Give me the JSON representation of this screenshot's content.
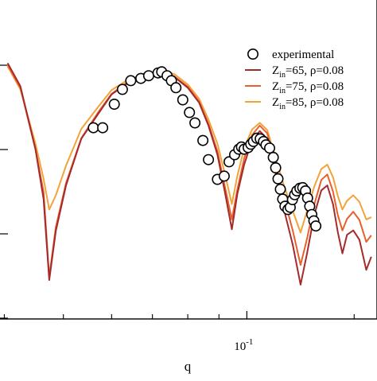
{
  "chart_data": {
    "type": "line",
    "xlabel": "q",
    "ylabel": "",
    "x_scale": "log",
    "x_tick_labels": [
      {
        "value": 0.1,
        "base": "10",
        "exp": "-1"
      }
    ],
    "legend_position": "top-right",
    "grid": false,
    "series": [
      {
        "name": "experimental",
        "name_parts": {
          "main": "experimental",
          "sub": "",
          "rest": ""
        },
        "kind": "scatter",
        "marker": "open-circle",
        "color": "#000000",
        "points": [
          [
            0.056,
            160.6
          ],
          [
            0.058,
            160.6
          ],
          [
            0.0606,
            131.0
          ],
          [
            0.0625,
            112.4
          ],
          [
            0.0645,
            101.4
          ],
          [
            0.067,
            98.6
          ],
          [
            0.069,
            95.2
          ],
          [
            0.0715,
            91.7
          ],
          [
            0.0725,
            90.3
          ],
          [
            0.074,
            95.2
          ],
          [
            0.0752,
            101.4
          ],
          [
            0.0765,
            110.3
          ],
          [
            0.0785,
            125.5
          ],
          [
            0.0805,
            141.4
          ],
          [
            0.0822,
            154.5
          ],
          [
            0.0847,
            176.6
          ],
          [
            0.0865,
            200.7
          ],
          [
            0.0895,
            225.5
          ],
          [
            0.0918,
            221.4
          ],
          [
            0.0935,
            203.4
          ],
          [
            0.0955,
            194.5
          ],
          [
            0.097,
            187.6
          ],
          [
            0.098,
            184.8
          ],
          [
            0.099,
            187.6
          ],
          [
            0.1005,
            185.5
          ],
          [
            0.1015,
            181.4
          ],
          [
            0.1025,
            177.9
          ],
          [
            0.1038,
            173.8
          ],
          [
            0.1052,
            174.5
          ],
          [
            0.1065,
            177.9
          ],
          [
            0.1075,
            182.1
          ],
          [
            0.109,
            186.2
          ],
          [
            0.1105,
            197.9
          ],
          [
            0.1115,
            211.0
          ],
          [
            0.1125,
            224.8
          ],
          [
            0.1135,
            237.9
          ],
          [
            0.1145,
            250.3
          ],
          [
            0.1155,
            259.3
          ],
          [
            0.1168,
            263.4
          ],
          [
            0.1178,
            260.7
          ],
          [
            0.1188,
            251.0
          ],
          [
            0.1198,
            244.8
          ],
          [
            0.1208,
            240.0
          ],
          [
            0.1222,
            236.6
          ],
          [
            0.1235,
            235.9
          ],
          [
            0.1248,
            240.0
          ],
          [
            0.1258,
            249.0
          ],
          [
            0.1268,
            259.3
          ],
          [
            0.1278,
            269.7
          ],
          [
            0.1288,
            277.6
          ],
          [
            0.1298,
            284.1
          ]
        ]
      },
      {
        "name": "Z_in=65, ρ=0.08",
        "name_parts": {
          "main": "Z",
          "sub": "in",
          "rest": "=65, ρ=0.08"
        },
        "kind": "line",
        "color": "#A52A2A",
        "points": [
          [
            0.0405,
            79.3
          ],
          [
            0.0425,
            108.3
          ],
          [
            0.045,
            187.6
          ],
          [
            0.0464,
            250.3
          ],
          [
            0.0474,
            352.1
          ],
          [
            0.0486,
            290.3
          ],
          [
            0.0505,
            233.1
          ],
          [
            0.0535,
            174.5
          ],
          [
            0.057,
            143.4
          ],
          [
            0.06,
            118.6
          ],
          [
            0.0635,
            105.5
          ],
          [
            0.068,
            94.5
          ],
          [
            0.0725,
            91.0
          ],
          [
            0.076,
            96.6
          ],
          [
            0.08,
            110.3
          ],
          [
            0.0835,
            129.0
          ],
          [
            0.0865,
            157.9
          ],
          [
            0.0895,
            194.5
          ],
          [
            0.092,
            240.7
          ],
          [
            0.0945,
            288.3
          ],
          [
            0.0965,
            243.4
          ],
          [
            0.099,
            206.9
          ],
          [
            0.102,
            176.6
          ],
          [
            0.105,
            164.8
          ],
          [
            0.108,
            174.5
          ],
          [
            0.111,
            211.0
          ],
          [
            0.115,
            262.8
          ],
          [
            0.119,
            308.3
          ],
          [
            0.1225,
            357.9
          ],
          [
            0.1255,
            319.3
          ],
          [
            0.129,
            270.3
          ],
          [
            0.1325,
            239.3
          ],
          [
            0.1355,
            233.1
          ],
          [
            0.1385,
            256.6
          ],
          [
            0.141,
            291.7
          ],
          [
            0.1435,
            318.6
          ],
          [
            0.146,
            295.2
          ],
          [
            0.1495,
            289.7
          ],
          [
            0.153,
            301.4
          ],
          [
            0.157,
            339.3
          ],
          [
            0.16,
            322.8
          ]
        ]
      },
      {
        "name": "Z_in=75, ρ=0.08",
        "name_parts": {
          "main": "Z",
          "sub": "in",
          "rest": "=75, ρ=0.08"
        },
        "kind": "line",
        "color": "#E8602C",
        "points": [
          [
            0.0405,
            81.4
          ],
          [
            0.0425,
            110.3
          ],
          [
            0.045,
            187.6
          ],
          [
            0.0464,
            241.4
          ],
          [
            0.0474,
            348.3
          ],
          [
            0.0486,
            285.5
          ],
          [
            0.0505,
            230.3
          ],
          [
            0.0535,
            173.8
          ],
          [
            0.057,
            141.4
          ],
          [
            0.06,
            117.9
          ],
          [
            0.0635,
            104.1
          ],
          [
            0.068,
            93.8
          ],
          [
            0.0725,
            90.3
          ],
          [
            0.076,
            95.9
          ],
          [
            0.08,
            109.0
          ],
          [
            0.0835,
            127.6
          ],
          [
            0.0865,
            155.9
          ],
          [
            0.0895,
            190.3
          ],
          [
            0.092,
            233.8
          ],
          [
            0.0945,
            275.9
          ],
          [
            0.0965,
            237.9
          ],
          [
            0.099,
            199.3
          ],
          [
            0.102,
            169.7
          ],
          [
            0.105,
            157.9
          ],
          [
            0.108,
            167.6
          ],
          [
            0.111,
            202.1
          ],
          [
            0.115,
            247.6
          ],
          [
            0.119,
            290.3
          ],
          [
            0.1225,
            333.1
          ],
          [
            0.1255,
            300.7
          ],
          [
            0.129,
            257.2
          ],
          [
            0.1325,
            226.2
          ],
          [
            0.1355,
            219.3
          ],
          [
            0.1385,
            240.7
          ],
          [
            0.141,
            270.3
          ],
          [
            0.1435,
            289.7
          ],
          [
            0.146,
            275.2
          ],
          [
            0.1495,
            266.2
          ],
          [
            0.153,
            276.6
          ],
          [
            0.157,
            304.1
          ],
          [
            0.16,
            295.9
          ]
        ]
      },
      {
        "name": "Z_in=85, ρ=0.08",
        "name_parts": {
          "main": "Z",
          "sub": "in",
          "rest": "=85, ρ=0.08"
        },
        "kind": "line",
        "color": "#F2A33A",
        "points": [
          [
            0.0405,
            83.4
          ],
          [
            0.0425,
            112.4
          ],
          [
            0.045,
            180.7
          ],
          [
            0.0464,
            224.8
          ],
          [
            0.0474,
            263.4
          ],
          [
            0.0486,
            245.5
          ],
          [
            0.0505,
            208.3
          ],
          [
            0.0535,
            162.1
          ],
          [
            0.057,
            134.5
          ],
          [
            0.06,
            113.1
          ],
          [
            0.0635,
            101.4
          ],
          [
            0.068,
            92.4
          ],
          [
            0.0725,
            89.0
          ],
          [
            0.076,
            93.1
          ],
          [
            0.08,
            106.2
          ],
          [
            0.0835,
            124.1
          ],
          [
            0.0865,
            150.3
          ],
          [
            0.0895,
            180.7
          ],
          [
            0.092,
            217.9
          ],
          [
            0.0945,
            256.6
          ],
          [
            0.0965,
            220.7
          ],
          [
            0.099,
            186.2
          ],
          [
            0.102,
            162.8
          ],
          [
            0.105,
            154.5
          ],
          [
            0.108,
            163.4
          ],
          [
            0.111,
            193.8
          ],
          [
            0.115,
            233.1
          ],
          [
            0.119,
            265.5
          ],
          [
            0.1225,
            292.4
          ],
          [
            0.1255,
            265.5
          ],
          [
            0.129,
            234.5
          ],
          [
            0.1325,
            212.4
          ],
          [
            0.1355,
            206.9
          ],
          [
            0.1385,
            222.8
          ],
          [
            0.141,
            246.2
          ],
          [
            0.1435,
            263.4
          ],
          [
            0.146,
            252.4
          ],
          [
            0.1495,
            245.5
          ],
          [
            0.153,
            253.8
          ],
          [
            0.157,
            275.9
          ],
          [
            0.16,
            273.1
          ]
        ]
      }
    ]
  }
}
